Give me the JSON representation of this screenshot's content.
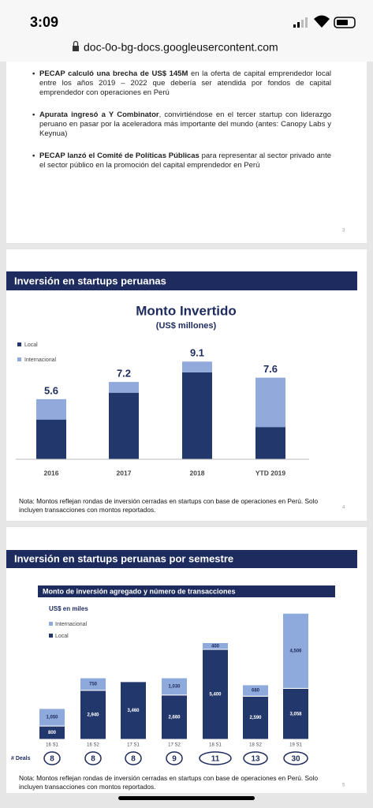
{
  "status_bar": {
    "time": "3:09"
  },
  "browser": {
    "url": "doc-0o-bg-docs.googleusercontent.com"
  },
  "slides": [
    {
      "bullets": [
        {
          "bold": "PECAP calculó una brecha de US$ 145M",
          "text": " en la oferta de capital emprendedor local entre los años 2019 – 2022 que debería ser atendida por fondos de capital emprendedor con operaciones en Perú"
        },
        {
          "bold": "Apurata ingresó a Y Combinator",
          "text": ", convirtiéndose en el tercer startup con liderazgo peruano en pasar por la aceleradora más importante del mundo (antes: Canopy Labs y Keynua)"
        },
        {
          "bold": "PECAP lanzó el Comité de Políticas Públicas",
          "text": " para representar al sector privado ante el sector público en la promoción del capital emprendedor en Perú"
        }
      ],
      "page": "3"
    },
    {
      "header": "Inversión en startups peruanas",
      "note": "Nota: Montos reflejan rondas de inversión cerradas en startups con base de operaciones en Perú. Solo incluyen transacciones con montos reportados.",
      "page": "4"
    },
    {
      "header": "Inversión en startups peruanas por semestre",
      "note": "Nota: Montos reflejan rondas de inversión cerradas en startups con base de operaciones en Perú. Solo incluyen transacciones con montos reportados.",
      "page": "5"
    }
  ],
  "chart_data": [
    {
      "type": "bar",
      "stacked": true,
      "title": "Monto Invertido",
      "subtitle": "(US$ millones)",
      "categories": [
        "2016",
        "2017",
        "2018",
        "YTD 2019"
      ],
      "series": [
        {
          "name": "Local",
          "color": "#22376b",
          "values": [
            3.7,
            6.2,
            8.1,
            3.0
          ]
        },
        {
          "name": "Internacional",
          "color": "#92aadb",
          "values": [
            1.9,
            1.0,
            1.0,
            4.6
          ]
        }
      ],
      "totals": [
        5.6,
        7.2,
        9.1,
        7.6
      ],
      "ylim": [
        0,
        10
      ]
    },
    {
      "type": "bar",
      "stacked": true,
      "title": "Monto de inversión agregado y número de transacciones",
      "y_label": "US$ en miles",
      "categories": [
        "16 S1",
        "16 S2",
        "17 S1",
        "17 S2",
        "18 S1",
        "18 S2",
        "19 S1"
      ],
      "series": [
        {
          "name": "Internacional",
          "color": "#8ea9db",
          "values": [
            1050,
            750,
            null,
            1030,
            400,
            680,
            4506
          ],
          "value_labels": [
            "1,050",
            "750",
            null,
            "1,030",
            "400",
            "680",
            "4,506"
          ]
        },
        {
          "name": "Local",
          "color": "#22376b",
          "values": [
            800,
            2940,
            3460,
            2660,
            5400,
            2590,
            3058
          ],
          "value_labels": [
            "800",
            "2,940",
            "3,460",
            "2,660",
            "5,400",
            "2,590",
            "3,058"
          ]
        }
      ],
      "deals_label": "# Deals",
      "deals": [
        8,
        8,
        8,
        9,
        11,
        13,
        30
      ],
      "ylim": [
        0,
        8000
      ]
    }
  ]
}
